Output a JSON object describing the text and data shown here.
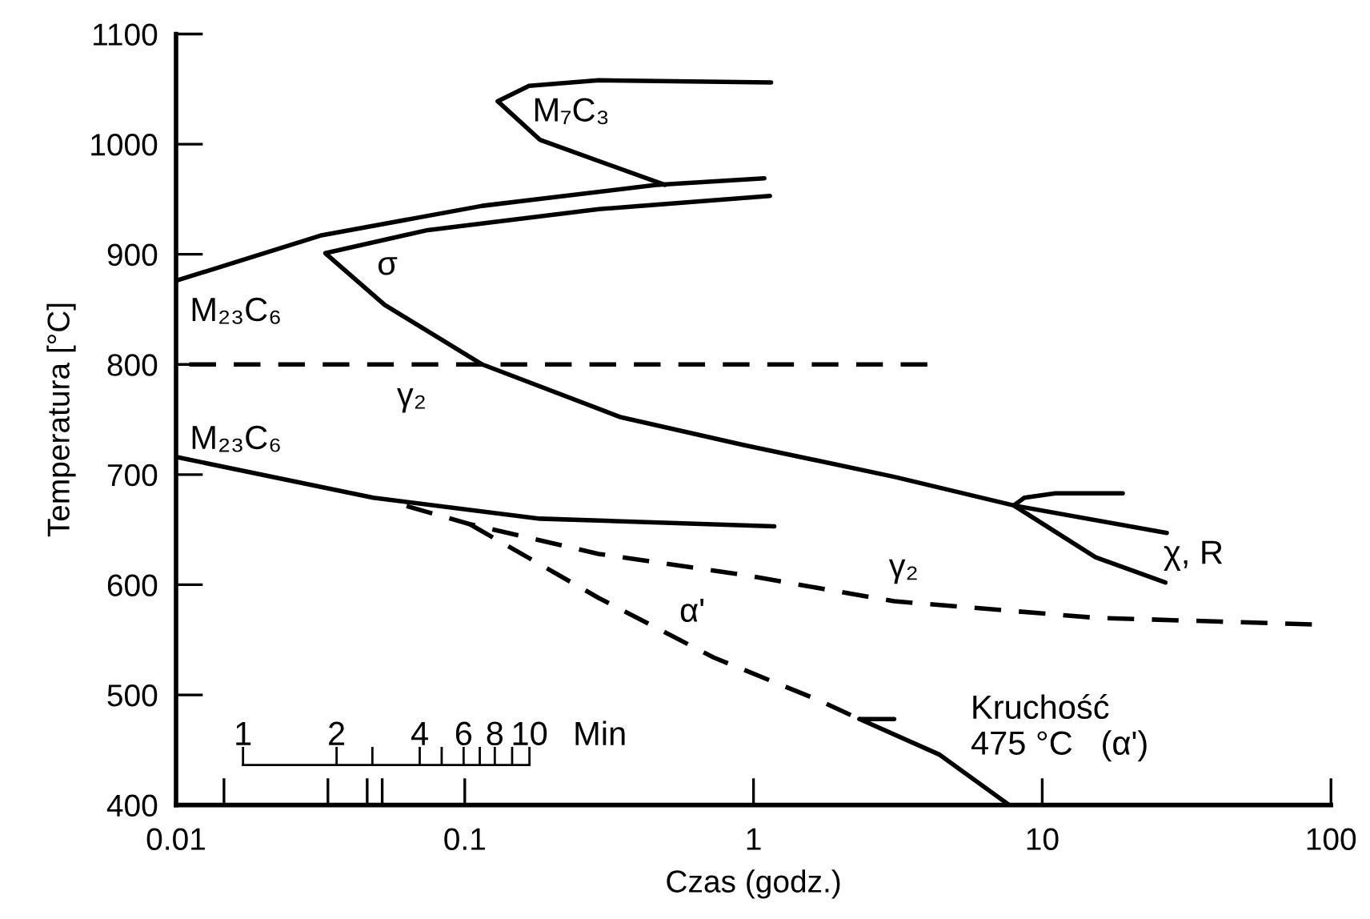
{
  "chart_data": {
    "type": "line",
    "xlabel": "Czas (godz.)",
    "ylabel": "Temperatura [°C]",
    "log": "x",
    "grid": false,
    "marker": "none",
    "xlim": [
      0.01,
      100
    ],
    "ylim": [
      400,
      1100
    ],
    "xticks": [
      {
        "value": 0.01,
        "label": "0.01"
      },
      {
        "value": 0.1,
        "label": "0.1"
      },
      1,
      10,
      100
    ],
    "yticks": [
      400,
      500,
      600,
      700,
      800,
      900,
      1000,
      1100
    ],
    "series": [
      {
        "color": "#000000",
        "line_style": "solid",
        "x": [
          0.01,
          0.0316,
          0.115,
          0.46,
          1.09
        ],
        "values": [
          876,
          917,
          944,
          963,
          969
        ]
      },
      {
        "color": "#000000",
        "line_style": "solid",
        "x": [
          1.14,
          0.291,
          0.0745,
          0.0329,
          0.0528,
          0.115,
          0.348,
          0.92,
          3.07,
          7.97,
          27.0
        ],
        "values": [
          953,
          941,
          922,
          901,
          854,
          800,
          752,
          727,
          698,
          672,
          647
        ]
      },
      {
        "color": "#000000",
        "line_style": "solid",
        "x": [
          7.97,
          8.67,
          11.1,
          19.0
        ],
        "values": [
          672,
          679,
          683,
          683
        ]
      },
      {
        "color": "#000000",
        "line_style": "solid",
        "x": [
          7.97,
          15.3,
          26.7
        ],
        "values": [
          672,
          625,
          602
        ]
      },
      {
        "color": "#000000",
        "line_style": "solid",
        "x": [
          1.15,
          0.291,
          0.167,
          0.13,
          0.182,
          0.493
        ],
        "values": [
          1056,
          1058,
          1053,
          1039,
          1004,
          963
        ]
      },
      {
        "color": "#000000",
        "line_style": "solid",
        "x": [
          0.01,
          0.0482,
          0.182,
          1.18
        ],
        "values": [
          716,
          679,
          660,
          653
        ]
      },
      {
        "color": "#000000",
        "line_style": "dashed",
        "x": [
          85.9,
          15.3,
          3.07,
          0.92,
          0.291,
          0.104,
          0.0548
        ],
        "values": [
          564,
          570,
          585,
          609,
          628,
          655,
          676
        ]
      },
      {
        "color": "#000000",
        "line_style": "dashed",
        "x": [
          0.104,
          0.291,
          0.727,
          1.69,
          2.33
        ],
        "values": [
          655,
          588,
          534,
          495,
          478
        ]
      },
      {
        "color": "#000000",
        "line_style": "solid",
        "x": [
          2.33,
          4.39,
          7.69
        ],
        "values": [
          478,
          446,
          400
        ]
      },
      {
        "color": "#000000",
        "line_style": "solid",
        "x": [
          2.33,
          3.07
        ],
        "values": [
          478,
          478
        ]
      },
      {
        "color": "#000000",
        "line_style": "dashed",
        "x": [
          4.0,
          0.01
        ],
        "values": [
          800,
          800
        ]
      }
    ],
    "annotations": [
      "M₇C₃",
      "σ",
      "M₂₃C₆",
      "γ₂",
      "M₂₃C₆",
      "γ₂",
      "α'",
      "χ, R",
      "Kruchość\n475 °C   (α')",
      "1",
      "2",
      "4",
      "6",
      "8",
      "10",
      "Min"
    ]
  }
}
